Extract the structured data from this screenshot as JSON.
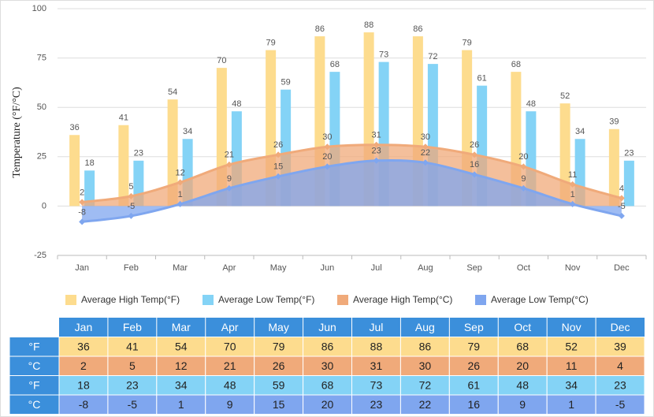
{
  "chart_data": {
    "type": "bar-area",
    "y_label": "Temperature (°F/°C)",
    "categories": [
      "Jan",
      "Feb",
      "Mar",
      "Apr",
      "May",
      "Jun",
      "Jul",
      "Aug",
      "Sep",
      "Oct",
      "Nov",
      "Dec"
    ],
    "series": [
      {
        "name": "Average High Temp(°F)",
        "color": "#fddc8e",
        "kind": "bar",
        "values": [
          36,
          41,
          54,
          70,
          79,
          86,
          88,
          86,
          79,
          68,
          52,
          39
        ]
      },
      {
        "name": "Average Low Temp(°F)",
        "color": "#84d3f6",
        "kind": "bar",
        "values": [
          18,
          23,
          34,
          48,
          59,
          68,
          73,
          72,
          61,
          48,
          34,
          23
        ]
      },
      {
        "name": "Average High Temp(°C)",
        "color": "#f0aa7a",
        "kind": "area",
        "values": [
          2,
          5,
          12,
          21,
          26,
          30,
          31,
          30,
          26,
          20,
          11,
          4
        ]
      },
      {
        "name": "Average Low Temp(°C)",
        "color": "#7fa6ef",
        "kind": "area",
        "values": [
          -8,
          -5,
          1,
          9,
          15,
          20,
          23,
          22,
          16,
          9,
          1,
          -5
        ]
      }
    ],
    "ylim": [
      -25,
      100
    ],
    "yticks": [
      -25,
      0,
      25,
      50,
      75,
      100
    ],
    "grid": true,
    "legend": "bottom"
  },
  "table": {
    "row_labels": [
      "°F",
      "°C",
      "°F",
      "°C"
    ]
  }
}
